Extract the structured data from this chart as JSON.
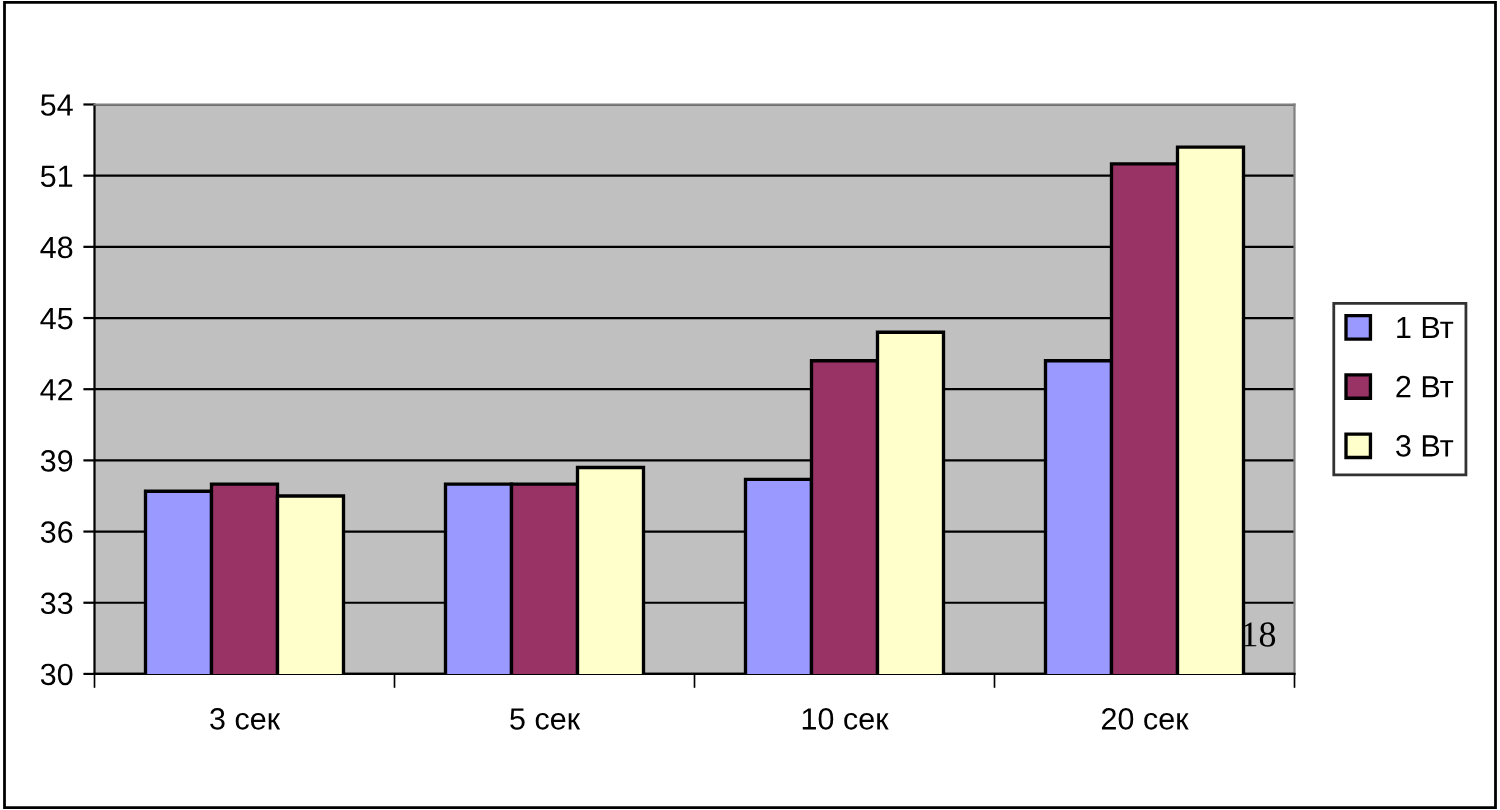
{
  "chart_data": {
    "type": "bar",
    "categories": [
      "3 сек",
      "5 сек",
      "10 сек",
      "20 сек"
    ],
    "series": [
      {
        "name": "1 Вт",
        "color": "#9999ff",
        "values": [
          37.7,
          38.0,
          38.2,
          43.2
        ]
      },
      {
        "name": "2 Вт",
        "color": "#993366",
        "values": [
          38.0,
          38.0,
          43.2,
          51.5
        ]
      },
      {
        "name": "3 Вт",
        "color": "#ffffcc",
        "values": [
          37.5,
          38.7,
          44.4,
          52.2
        ]
      }
    ],
    "ylim": [
      30,
      54
    ],
    "yticks": [
      30,
      33,
      36,
      39,
      42,
      45,
      48,
      51,
      54
    ],
    "grid": "y",
    "legend": "right",
    "annotations": [
      "18"
    ]
  }
}
